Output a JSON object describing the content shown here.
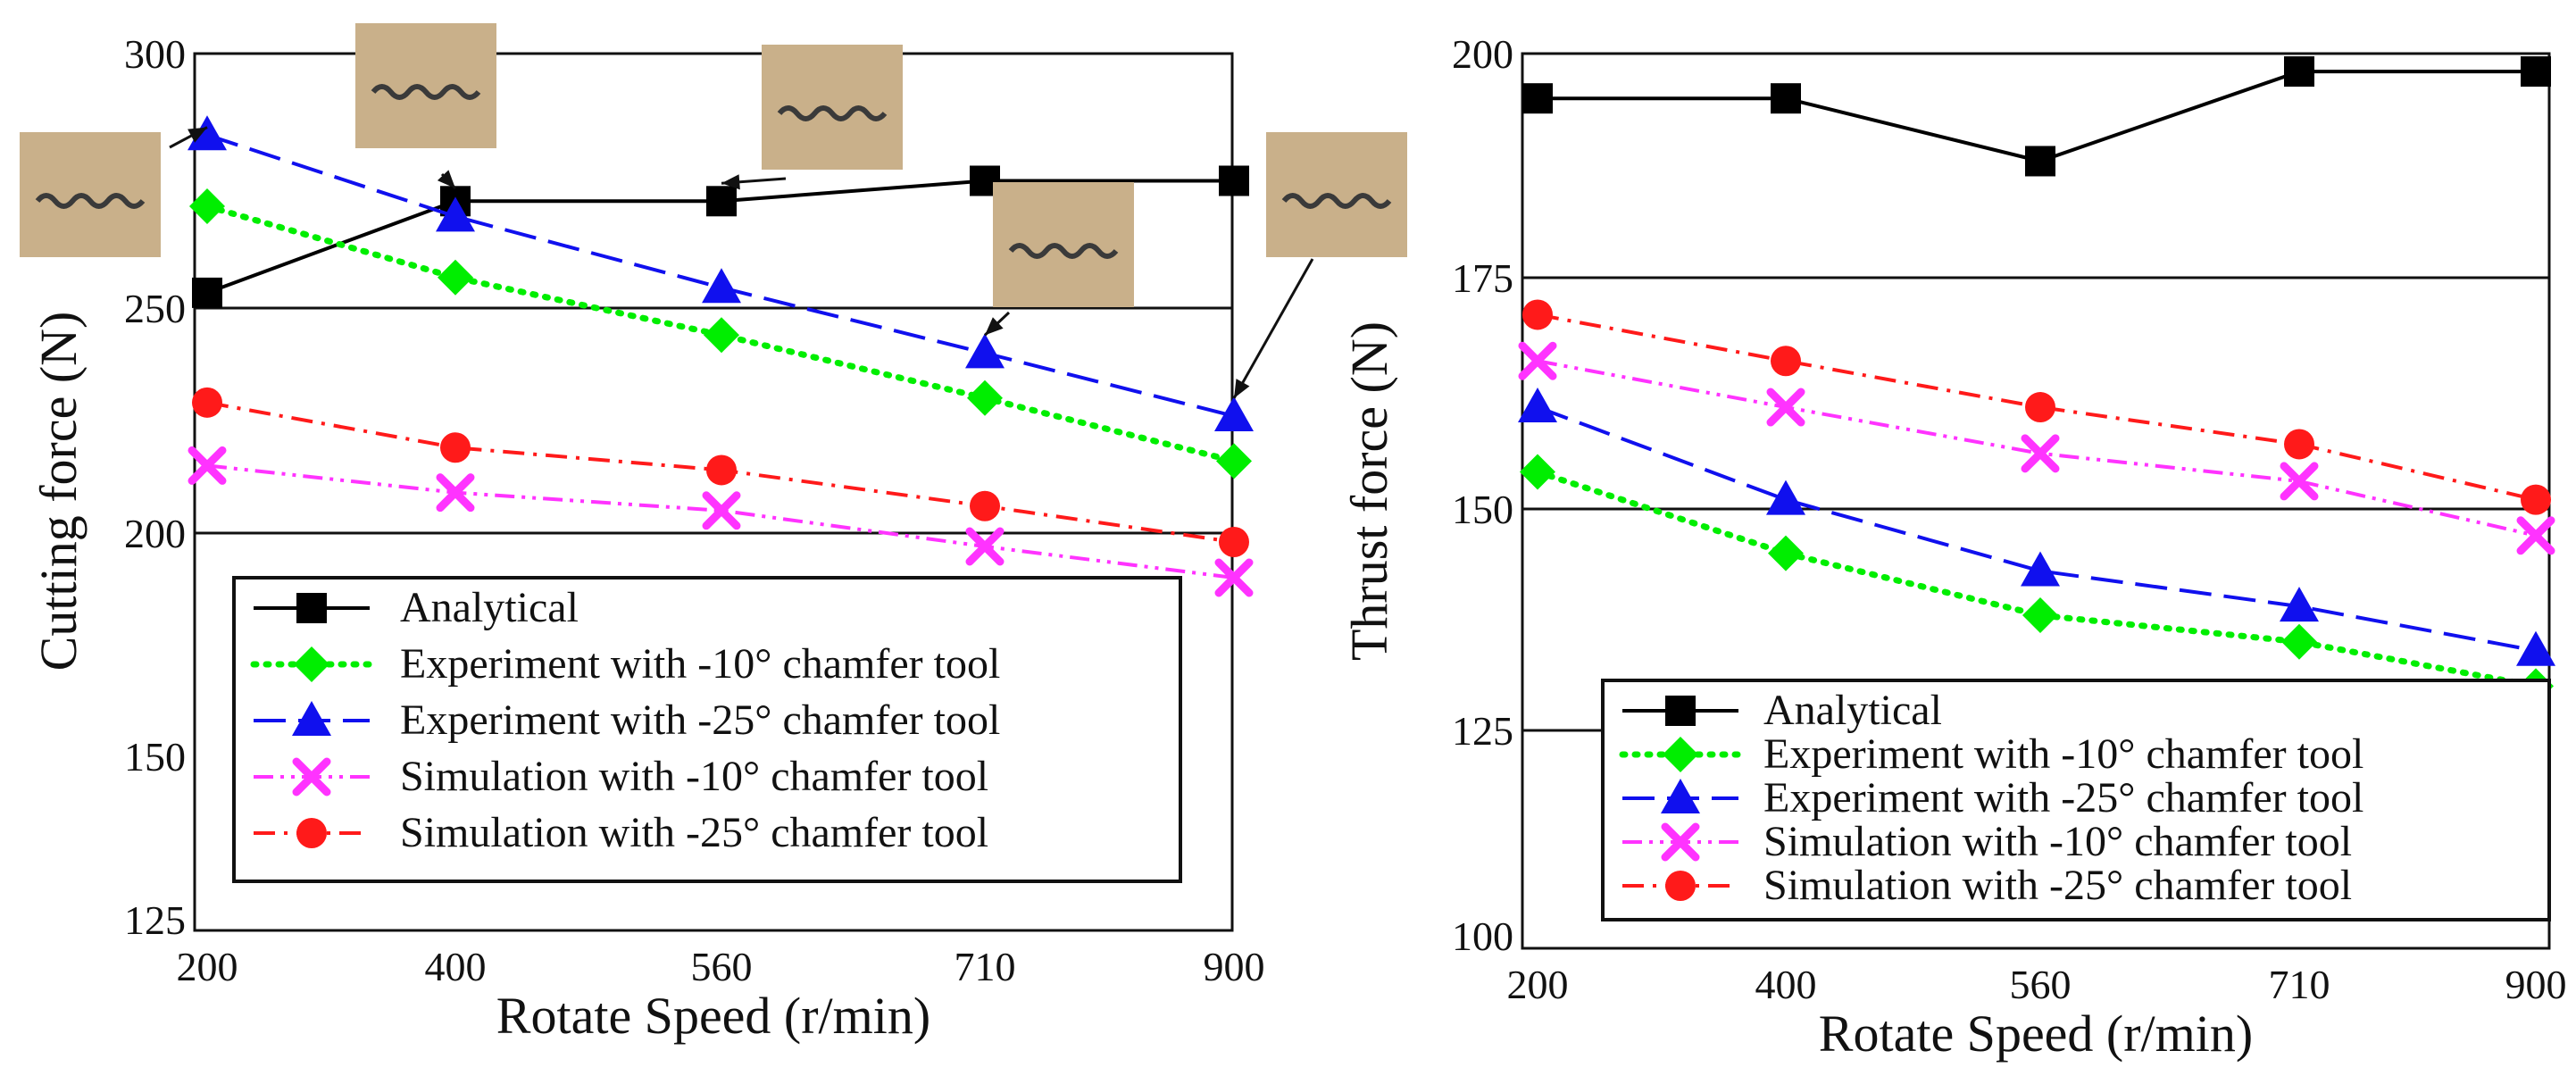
{
  "colors": {
    "analytical": "#000000",
    "exp10": "#00ee00",
    "exp25": "#1010ee",
    "sim10": "#ff33ff",
    "sim25": "#ff1a1a",
    "chip_photo_bg": "#c9b08a",
    "chip_photo_chip": "#3a3a3a"
  },
  "chart_data": [
    {
      "type": "line",
      "xlabel": "Rotate Speed (r/min)",
      "ylabel": "Cutting force (N)",
      "categories": [
        "200",
        "400",
        "560",
        "710",
        "900"
      ],
      "y_ticks": [
        "125",
        "150",
        "200",
        "250",
        "300"
      ],
      "ylim": [
        125,
        300
      ],
      "grid_lines_y": [
        200,
        250
      ],
      "legend_position": "bottom-left",
      "series": [
        {
          "name": "Analytical",
          "key": "analytical",
          "marker": "square",
          "dash": "solid",
          "values": [
            253,
            271,
            271,
            275,
            275
          ]
        },
        {
          "name": "Experiment with -10° chamfer tool",
          "key": "exp10",
          "marker": "diamond",
          "dash": "dotted",
          "values": [
            270,
            256,
            244,
            230,
            216
          ]
        },
        {
          "name": "Experiment with -25° chamfer tool",
          "key": "exp25",
          "marker": "triangle",
          "dash": "dashed",
          "values": [
            284,
            268,
            254,
            240,
            226
          ]
        },
        {
          "name": "Simulation with -10° chamfer tool",
          "key": "sim10",
          "marker": "x",
          "dash": "dashdotdot",
          "values": [
            215,
            209,
            205,
            197,
            190
          ]
        },
        {
          "name": "Simulation with -25° chamfer tool",
          "key": "sim25",
          "marker": "circle",
          "dash": "dashdot",
          "values": [
            229,
            219,
            214,
            206,
            198
          ]
        }
      ],
      "chip_photos": [
        {
          "name": "chip-photo-200",
          "anchor_x": "200",
          "anchor_y": 282
        },
        {
          "name": "chip-photo-400",
          "anchor_x": "400",
          "anchor_y": 270
        },
        {
          "name": "chip-photo-560",
          "anchor_x": "560",
          "anchor_y": 271
        },
        {
          "name": "chip-photo-710",
          "anchor_x": "710",
          "anchor_y": 240
        },
        {
          "name": "chip-photo-900",
          "anchor_x": "900",
          "anchor_y": 226
        }
      ]
    },
    {
      "type": "line",
      "xlabel": "Rotate Speed (r/min)",
      "ylabel": "Thrust force (N)",
      "categories": [
        "200",
        "400",
        "560",
        "710",
        "900"
      ],
      "y_ticks": [
        "100",
        "125",
        "150",
        "175",
        "200"
      ],
      "ylim": [
        100,
        200
      ],
      "grid_lines_y": [
        125,
        150,
        175
      ],
      "legend_position": "bottom-right",
      "series": [
        {
          "name": "Analytical",
          "key": "analytical",
          "marker": "square",
          "dash": "solid",
          "values": [
            195,
            195,
            188,
            198,
            198
          ]
        },
        {
          "name": "Experiment with -10° chamfer tool",
          "key": "exp10",
          "marker": "diamond",
          "dash": "dotted",
          "values": [
            154,
            145,
            138,
            135,
            130
          ]
        },
        {
          "name": "Experiment with -25° chamfer tool",
          "key": "exp25",
          "marker": "triangle",
          "dash": "dashed",
          "values": [
            161,
            151,
            143,
            139,
            134
          ]
        },
        {
          "name": "Simulation with -10° chamfer tool",
          "key": "sim10",
          "marker": "x",
          "dash": "dashdotdot",
          "values": [
            166,
            161,
            156,
            153,
            147
          ]
        },
        {
          "name": "Simulation with -25° chamfer tool",
          "key": "sim25",
          "marker": "circle",
          "dash": "dashdot",
          "values": [
            171,
            166,
            161,
            157,
            151
          ]
        }
      ]
    }
  ]
}
